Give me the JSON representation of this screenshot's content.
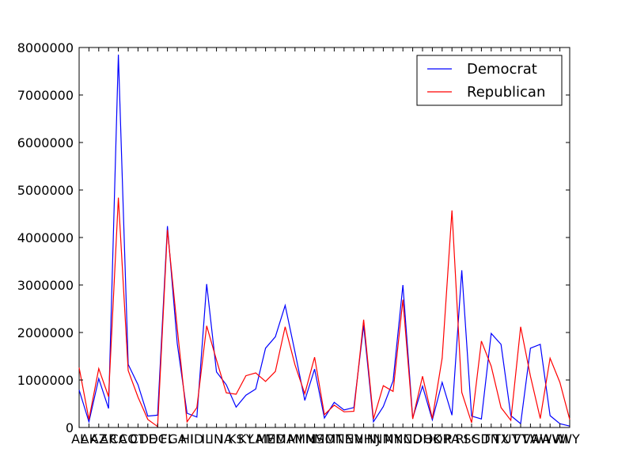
{
  "chart_data": {
    "type": "line",
    "title": "",
    "xlabel": "",
    "ylabel": "",
    "categories": [
      "AL",
      "AK",
      "AZ",
      "AR",
      "CA",
      "CO",
      "CT",
      "DE",
      "DC",
      "FL",
      "GA",
      "HI",
      "ID",
      "IL",
      "IN",
      "IA",
      "KS",
      "KY",
      "LA",
      "ME",
      "MD",
      "MA",
      "MI",
      "MN",
      "MS",
      "MO",
      "MT",
      "NE",
      "NV",
      "NH",
      "NJ",
      "NM",
      "NY",
      "NC",
      "ND",
      "OH",
      "OK",
      "OR",
      "PA",
      "RI",
      "SC",
      "SD",
      "TN",
      "TX",
      "UT",
      "VT",
      "VA",
      "WA",
      "WV",
      "WI",
      "WY"
    ],
    "ylim": [
      0,
      8000000
    ],
    "yticks": [
      0,
      1000000,
      2000000,
      3000000,
      4000000,
      5000000,
      6000000,
      7000000,
      8000000
    ],
    "ytick_labels": [
      "0",
      "1000000",
      "2000000",
      "3000000",
      "4000000",
      "5000000",
      "6000000",
      "7000000",
      "8000000"
    ],
    "grid": false,
    "legend_position": "top-right",
    "series": [
      {
        "name": "Democrat",
        "color": "#0000ff",
        "values": [
          790000,
          120000,
          1030000,
          400000,
          7850000,
          1330000,
          900000,
          240000,
          260000,
          4240000,
          1770000,
          300000,
          220000,
          3020000,
          1170000,
          900000,
          430000,
          680000,
          810000,
          1670000,
          1910000,
          2570000,
          1590000,
          570000,
          1230000,
          200000,
          530000,
          370000,
          420000,
          2150000,
          120000,
          440000,
          980000,
          3000000,
          200000,
          870000,
          160000,
          950000,
          260000,
          3310000,
          240000,
          180000,
          1980000,
          1750000,
          250000,
          80000,
          1670000,
          1750000,
          250000,
          80000,
          30000
        ]
      },
      {
        "name": "Republican",
        "color": "#ff0000",
        "values": [
          1260000,
          170000,
          1240000,
          650000,
          4840000,
          1200000,
          640000,
          170000,
          20000,
          4160000,
          2090000,
          120000,
          420000,
          2140000,
          1420000,
          730000,
          700000,
          1090000,
          1150000,
          970000,
          1180000,
          2120000,
          1320000,
          710000,
          1480000,
          270000,
          470000,
          330000,
          340000,
          2270000,
          180000,
          880000,
          760000,
          2690000,
          180000,
          1080000,
          190000,
          1460000,
          4570000,
          740000,
          100000,
          1820000,
          1290000,
          420000,
          150000,
          2120000,
          1080000,
          190000,
          1460000,
          950000,
          170000
        ]
      }
    ]
  }
}
